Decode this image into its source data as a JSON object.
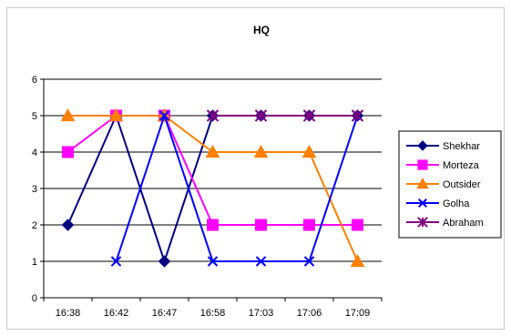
{
  "chart_data": {
    "type": "line",
    "title": "HQ",
    "xlabel": "",
    "ylabel": "",
    "categories": [
      "16:38",
      "16:42",
      "16:47",
      "16:58",
      "17:03",
      "17:06",
      "17:09"
    ],
    "ylim": [
      0,
      6
    ],
    "yticks": [
      0,
      1,
      2,
      3,
      4,
      5,
      6
    ],
    "grid": "horizontal",
    "legend_position": "right",
    "series": [
      {
        "name": "Shekhar",
        "color": "#000080",
        "marker": "diamond",
        "values": [
          2,
          5,
          1,
          5,
          5,
          5,
          5
        ]
      },
      {
        "name": "Morteza",
        "color": "#FF00FF",
        "marker": "square",
        "values": [
          4,
          5,
          5,
          2,
          2,
          2,
          2
        ]
      },
      {
        "name": "Outsider",
        "color": "#FF8000",
        "marker": "triangle",
        "values": [
          5,
          5,
          5,
          4,
          4,
          4,
          1
        ]
      },
      {
        "name": "Golha",
        "color": "#0000FF",
        "marker": "x",
        "values": [
          null,
          1,
          5,
          1,
          1,
          1,
          5
        ]
      },
      {
        "name": "Abraham",
        "color": "#800080",
        "marker": "star",
        "values": [
          null,
          null,
          null,
          5,
          5,
          5,
          5
        ]
      }
    ]
  }
}
